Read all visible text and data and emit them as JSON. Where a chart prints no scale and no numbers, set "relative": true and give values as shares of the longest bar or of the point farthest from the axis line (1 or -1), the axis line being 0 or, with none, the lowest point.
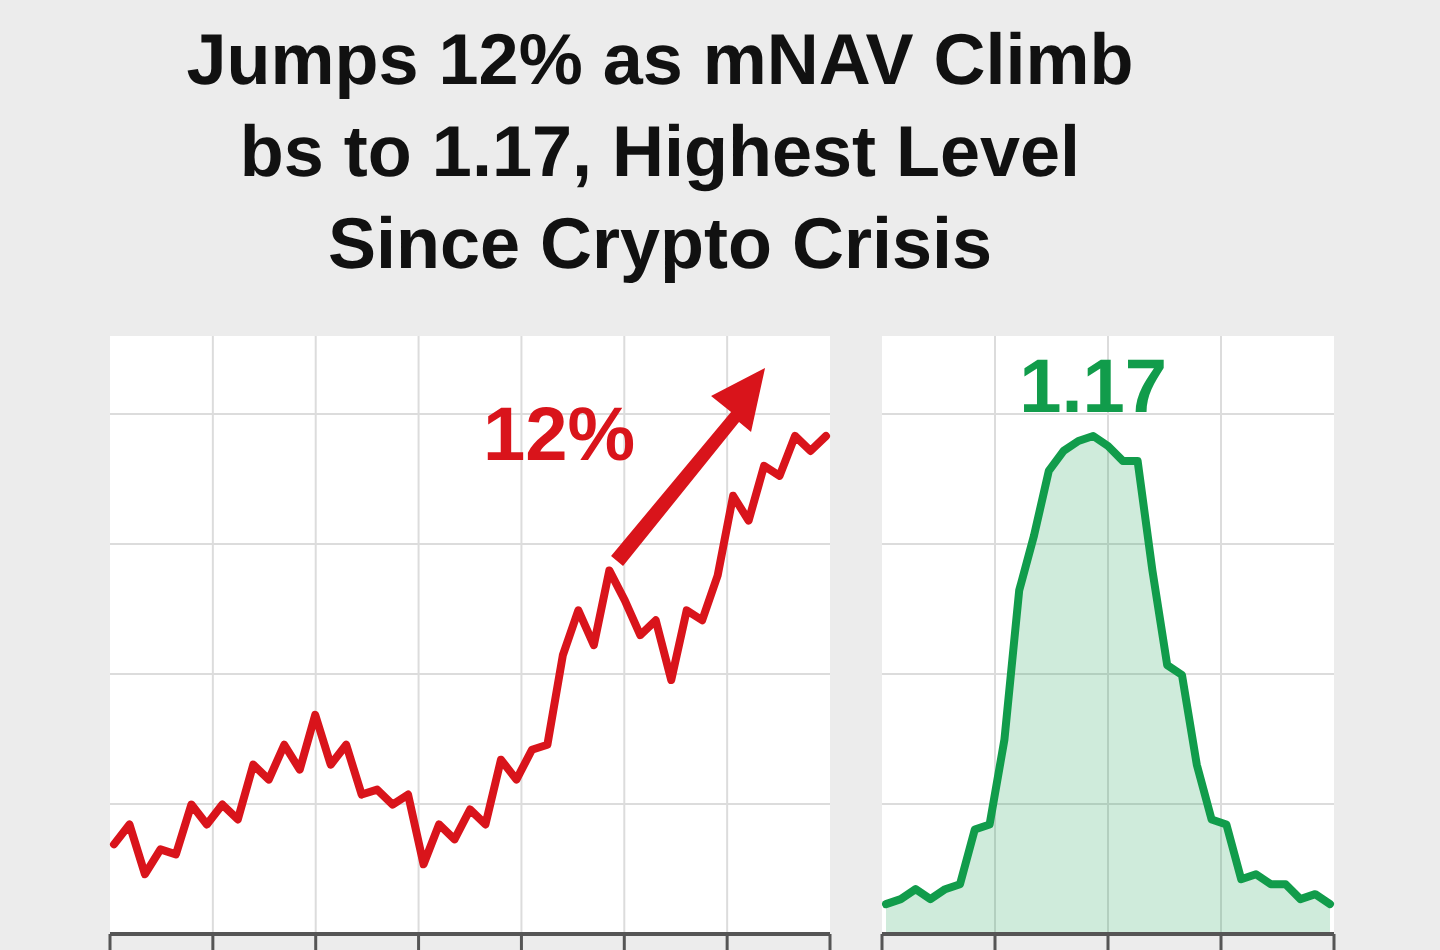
{
  "chart_data": [
    {
      "type": "line",
      "title": "Jumps 12% as mNAV Climb\nbs to 1.17, Highest Level\nSince Crypto Crisis",
      "relative": true,
      "grid": true,
      "color": "#d9141b",
      "annotations": [
        "12%"
      ],
      "categories": [
        null,
        null,
        null,
        null,
        null,
        null,
        null,
        null,
        null,
        null,
        null,
        null,
        null,
        null,
        null,
        null,
        null,
        null,
        null,
        null,
        null,
        null,
        null,
        null,
        null,
        null,
        null,
        null,
        null,
        null,
        null,
        null,
        null,
        null,
        null,
        null,
        null,
        null,
        null,
        null,
        null,
        null,
        null,
        null,
        null,
        null,
        null
      ],
      "values": [
        0.18,
        0.22,
        0.12,
        0.17,
        0.16,
        0.26,
        0.22,
        0.26,
        0.23,
        0.34,
        0.31,
        0.38,
        0.33,
        0.44,
        0.34,
        0.38,
        0.28,
        0.29,
        0.26,
        0.28,
        0.14,
        0.22,
        0.19,
        0.25,
        0.22,
        0.35,
        0.31,
        0.37,
        0.38,
        0.56,
        0.65,
        0.58,
        0.73,
        0.67,
        0.6,
        0.63,
        0.51,
        0.65,
        0.63,
        0.72,
        0.88,
        0.83,
        0.94,
        0.92,
        1,
        0.97,
        1
      ]
    },
    {
      "type": "area",
      "relative": true,
      "grid": true,
      "color": "#119c4b",
      "annotations": [
        "1.17"
      ],
      "categories": [
        null,
        null,
        null,
        null,
        null,
        null,
        null,
        null,
        null,
        null,
        null,
        null,
        null,
        null,
        null,
        null,
        null,
        null,
        null,
        null,
        null,
        null,
        null,
        null,
        null,
        null,
        null,
        null,
        null,
        null,
        null
      ],
      "values": [
        0.06,
        0.07,
        0.09,
        0.07,
        0.09,
        0.1,
        0.21,
        0.22,
        0.39,
        0.69,
        0.8,
        0.93,
        0.97,
        0.99,
        1,
        0.98,
        0.95,
        0.95,
        0.73,
        0.54,
        0.52,
        0.34,
        0.23,
        0.22,
        0.11,
        0.12,
        0.1,
        0.1,
        0.07,
        0.08,
        0.06
      ]
    }
  ]
}
